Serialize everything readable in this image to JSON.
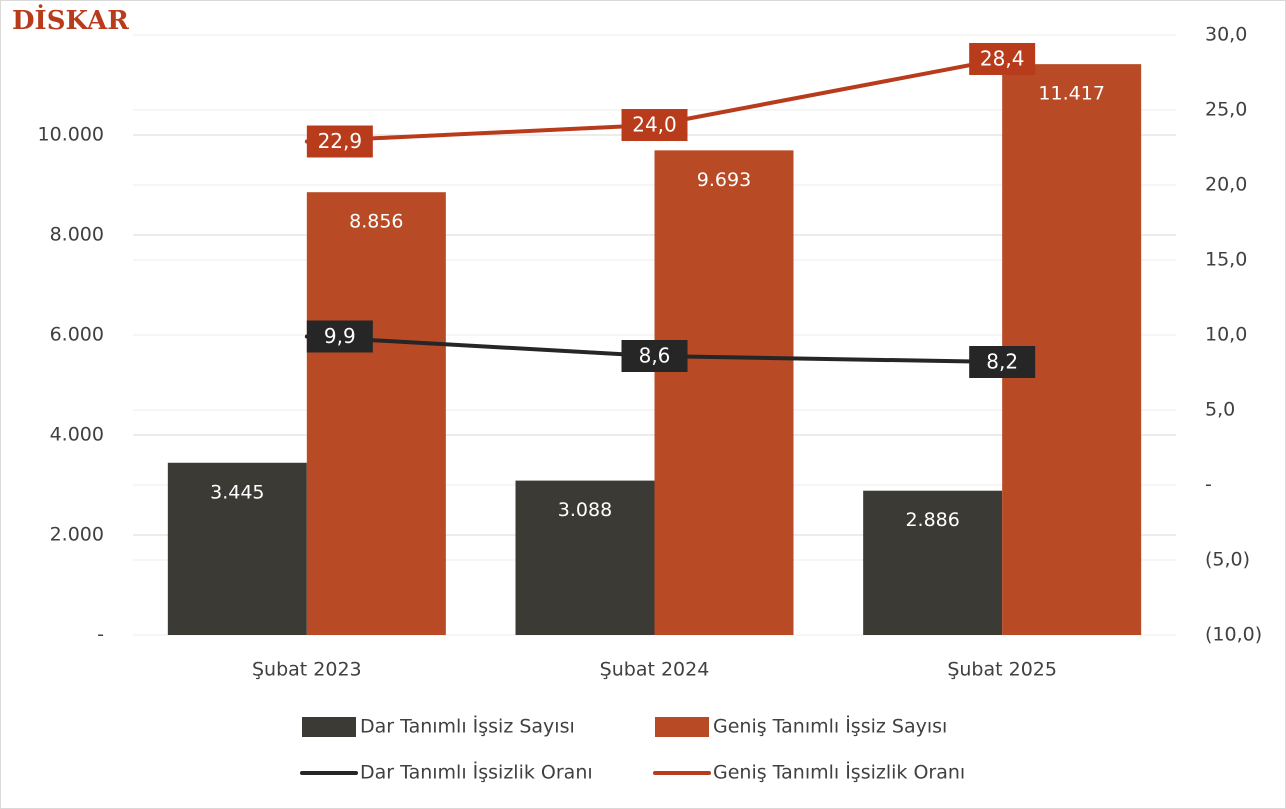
{
  "chart_data": {
    "type": "bar_line",
    "logo": "DİSKAR",
    "categories": [
      "Şubat 2023",
      "Şubat 2024",
      "Şubat 2025"
    ],
    "series": [
      {
        "name": "Dar Tanımlı İşsiz Sayısı",
        "type": "bar",
        "color": "#3b3a35",
        "values": [
          3445,
          3088,
          2886
        ],
        "value_labels": [
          "3.445",
          "3.088",
          "2.886"
        ]
      },
      {
        "name": "Geniş Tanımlı İşsiz Sayısı",
        "type": "bar",
        "color": "#b84a26",
        "values": [
          8856,
          9693,
          11417
        ],
        "value_labels": [
          "8.856",
          "9.693",
          "11.417"
        ]
      },
      {
        "name": "Dar Tanımlı İşsizlik Oranı",
        "type": "line",
        "axis": "y2",
        "color": "#262626",
        "values": [
          9.9,
          8.6,
          8.2
        ],
        "value_labels": [
          "9,9",
          "8,6",
          "8,2"
        ]
      },
      {
        "name": "Geniş Tanımlı İşsizlik Oranı",
        "type": "line",
        "axis": "y2",
        "color": "#b83c1c",
        "values": [
          22.9,
          24.0,
          28.4
        ],
        "value_labels": [
          "22,9",
          "24,0",
          "28,4"
        ]
      }
    ],
    "ylim": [
      0,
      12000
    ],
    "yticks": [
      {
        "value": 0,
        "label": "-"
      },
      {
        "value": 2000,
        "label": "2.000"
      },
      {
        "value": 4000,
        "label": "4.000"
      },
      {
        "value": 6000,
        "label": "6.000"
      },
      {
        "value": 8000,
        "label": "8.000"
      },
      {
        "value": 10000,
        "label": "10.000"
      }
    ],
    "y2lim": [
      -10,
      30
    ],
    "y2ticks": [
      {
        "value": -10,
        "label": "(10,0)"
      },
      {
        "value": -5,
        "label": "(5,0)"
      },
      {
        "value": 0,
        "label": "-"
      },
      {
        "value": 5,
        "label": "5,0"
      },
      {
        "value": 10,
        "label": "10,0"
      },
      {
        "value": 15,
        "label": "15,0"
      },
      {
        "value": 20,
        "label": "20,0"
      },
      {
        "value": 25,
        "label": "25,0"
      },
      {
        "value": 30,
        "label": "30,0"
      }
    ],
    "grid": true
  }
}
